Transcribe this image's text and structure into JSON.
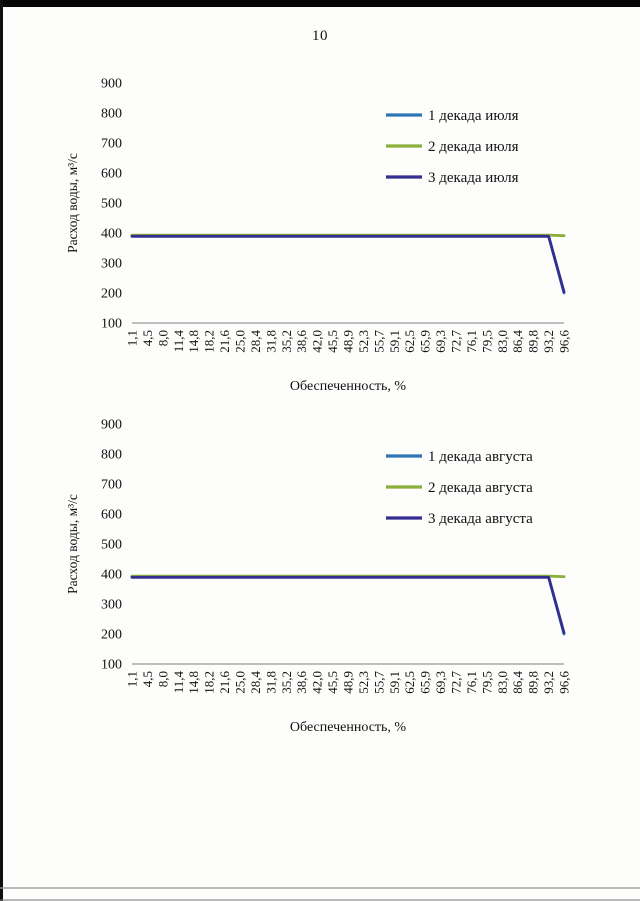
{
  "page": {
    "number": "10"
  },
  "colors": {
    "series_blue": "#2E75B6",
    "series_green": "#8CAE3A",
    "series_navy": "#342E91",
    "axis_line": "#808080",
    "text": "#111111"
  },
  "chart_data": [
    {
      "type": "line",
      "title": "",
      "xlabel": "Обеспеченность, %",
      "ylabel": "Расход воды, м³/с",
      "ylim": [
        100,
        900
      ],
      "yticks": [
        900,
        800,
        700,
        600,
        500,
        400,
        300,
        200,
        100
      ],
      "grid": false,
      "legend_position": "right-inside",
      "categories": [
        "1,1",
        "4,5",
        "8,0",
        "11,4",
        "14,8",
        "18,2",
        "21,6",
        "25,0",
        "28,4",
        "31,8",
        "35,2",
        "38,6",
        "42,0",
        "45,5",
        "48,9",
        "52,3",
        "55,7",
        "59,1",
        "62,5",
        "65,9",
        "69,3",
        "72,7",
        "76,1",
        "79,5",
        "83,0",
        "86,4",
        "89,8",
        "93,2",
        "96,6"
      ],
      "series": [
        {
          "name": "1 декада июля",
          "color": "#2E75B6",
          "values": [
            391,
            391,
            391,
            391,
            391,
            391,
            391,
            391,
            391,
            391,
            391,
            391,
            391,
            391,
            391,
            391,
            391,
            391,
            391,
            391,
            391,
            391,
            391,
            391,
            391,
            391,
            391,
            391,
            200
          ]
        },
        {
          "name": "2 декада июля",
          "color": "#8CAE3A",
          "values": [
            393,
            393,
            393,
            393,
            393,
            393,
            393,
            393,
            393,
            393,
            393,
            393,
            393,
            393,
            393,
            393,
            393,
            393,
            393,
            393,
            393,
            393,
            393,
            393,
            393,
            393,
            393,
            393,
            391
          ]
        },
        {
          "name": "3 декада июля",
          "color": "#342E91",
          "values": [
            389,
            389,
            389,
            389,
            389,
            389,
            389,
            389,
            389,
            389,
            389,
            389,
            389,
            389,
            389,
            389,
            389,
            389,
            389,
            389,
            389,
            389,
            389,
            389,
            389,
            389,
            389,
            389,
            204
          ]
        }
      ]
    },
    {
      "type": "line",
      "title": "",
      "xlabel": "Обеспеченность, %",
      "ylabel": "Расход воды, м³/с",
      "ylim": [
        100,
        900
      ],
      "yticks": [
        900,
        800,
        700,
        600,
        500,
        400,
        300,
        200,
        100
      ],
      "grid": false,
      "legend_position": "right-inside",
      "categories": [
        "1,1",
        "4,5",
        "8,0",
        "11,4",
        "14,8",
        "18,2",
        "21,6",
        "25,0",
        "28,4",
        "31,8",
        "35,2",
        "38,6",
        "42,0",
        "45,5",
        "48,9",
        "52,3",
        "55,7",
        "59,1",
        "62,5",
        "65,9",
        "69,3",
        "72,7",
        "76,1",
        "79,5",
        "83,0",
        "86,4",
        "89,8",
        "93,2",
        "96,6"
      ],
      "series": [
        {
          "name": "1 декада августа",
          "color": "#2E75B6",
          "values": [
            391,
            391,
            391,
            391,
            391,
            391,
            391,
            391,
            391,
            391,
            391,
            391,
            391,
            391,
            391,
            391,
            391,
            391,
            391,
            391,
            391,
            391,
            391,
            391,
            391,
            391,
            391,
            391,
            200
          ]
        },
        {
          "name": "2 декада августа",
          "color": "#8CAE3A",
          "values": [
            393,
            393,
            393,
            393,
            393,
            393,
            393,
            393,
            393,
            393,
            393,
            393,
            393,
            393,
            393,
            393,
            393,
            393,
            393,
            393,
            393,
            393,
            393,
            393,
            393,
            393,
            393,
            393,
            391
          ]
        },
        {
          "name": "3 декада августа",
          "color": "#342E91",
          "values": [
            389,
            389,
            389,
            389,
            389,
            389,
            389,
            389,
            389,
            389,
            389,
            389,
            389,
            389,
            389,
            389,
            389,
            389,
            389,
            389,
            389,
            389,
            389,
            389,
            389,
            389,
            389,
            389,
            204
          ]
        }
      ]
    }
  ]
}
